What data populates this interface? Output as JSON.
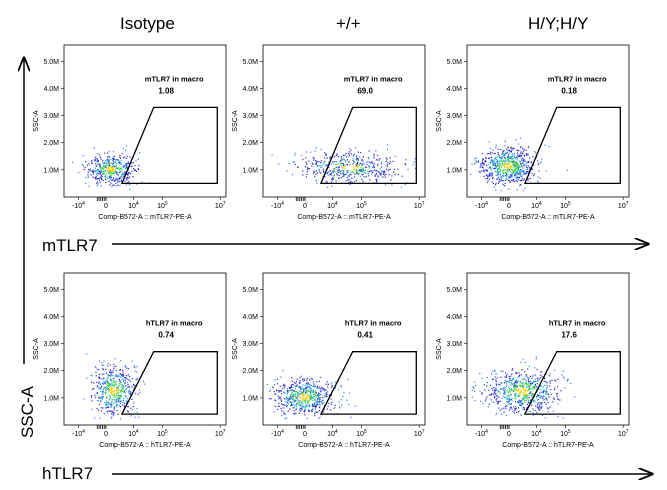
{
  "column_headers": [
    "Isotype",
    "+/+",
    "H/Y;H/Y"
  ],
  "row_labels": [
    "mTLR7",
    "hTLR7"
  ],
  "side_label": "SSC-A",
  "colors": {
    "dot_low": "#2b2bd6",
    "dot_mid": "#22aadd",
    "dot_high": "#44dd44",
    "dot_peak": "#ffcc00",
    "dot_outlier": "#4477ee",
    "gate": "#000000"
  },
  "chart_data": [
    {
      "type": "scatter",
      "row": 0,
      "col": 0,
      "gate_name": "mTLR7 in macro",
      "gate_value": "1.08",
      "xlabel": "Comp-B572-A :: mTLR7-PE-A",
      "ylabel": "SSC-A",
      "yticks": [
        "1.0M",
        "2.0M",
        "3.0M",
        "4.0M",
        "5.0M"
      ],
      "xticks": [
        "-10^4",
        "0",
        "10^4",
        "10^5",
        "10^7"
      ],
      "cloud": {
        "cx_decade": 3.2,
        "cy_M": 1.05,
        "sx": 0.45,
        "sy": 0.28,
        "n": 420,
        "dense": 0.6
      },
      "gate": [
        [
          3.6,
          0.5
        ],
        [
          4.7,
          3.3
        ],
        [
          6.9,
          3.3
        ],
        [
          6.9,
          0.5
        ]
      ]
    },
    {
      "type": "scatter",
      "row": 0,
      "col": 1,
      "gate_name": "mTLR7 in macro",
      "gate_value": "69.0",
      "xlabel": "Comp-B572-A :: mTLR7-PE-A",
      "ylabel": "SSC-A",
      "yticks": [
        "1.0M",
        "2.0M",
        "3.0M",
        "4.0M",
        "5.0M"
      ],
      "xticks": [
        "-10^4",
        "0",
        "10^4",
        "10^5",
        "10^7"
      ],
      "cloud": {
        "cx_decade": 4.6,
        "cy_M": 1.1,
        "sx": 0.9,
        "sy": 0.3,
        "n": 460,
        "dense": 0.35
      },
      "gate": [
        [
          3.6,
          0.5
        ],
        [
          4.7,
          3.3
        ],
        [
          6.9,
          3.3
        ],
        [
          6.9,
          0.5
        ]
      ]
    },
    {
      "type": "scatter",
      "row": 0,
      "col": 2,
      "gate_name": "mTLR7 in macro",
      "gate_value": "0.18",
      "xlabel": "Comp-B572-A :: mTLR7-PE-A",
      "ylabel": "SSC-A",
      "yticks": [
        "1.0M",
        "2.0M",
        "3.0M",
        "4.0M",
        "5.0M"
      ],
      "xticks": [
        "-10^4",
        "0",
        "10^4",
        "10^5",
        "10^7"
      ],
      "cloud": {
        "cx_decade": 3.0,
        "cy_M": 1.15,
        "sx": 0.5,
        "sy": 0.35,
        "n": 650,
        "dense": 0.7
      },
      "gate": [
        [
          3.6,
          0.5
        ],
        [
          4.7,
          3.3
        ],
        [
          6.9,
          3.3
        ],
        [
          6.9,
          0.5
        ]
      ]
    },
    {
      "type": "scatter",
      "row": 1,
      "col": 0,
      "gate_name": "hTLR7 in macro",
      "gate_value": "0.74",
      "xlabel": "Comp-B572-A :: hTLR7-PE-A",
      "ylabel": "SSC-A",
      "yticks": [
        "1.0M",
        "2.0M",
        "3.0M",
        "4.0M",
        "5.0M"
      ],
      "xticks": [
        "-10^4",
        "0",
        "10^4",
        "10^5",
        "10^7"
      ],
      "cloud": {
        "cx_decade": 3.3,
        "cy_M": 1.3,
        "sx": 0.4,
        "sy": 0.45,
        "n": 480,
        "dense": 0.7
      },
      "gate": [
        [
          3.6,
          0.4
        ],
        [
          4.7,
          2.7
        ],
        [
          6.9,
          2.7
        ],
        [
          6.9,
          0.4
        ]
      ]
    },
    {
      "type": "scatter",
      "row": 1,
      "col": 1,
      "gate_name": "hTLR7 in macro",
      "gate_value": "0.41",
      "xlabel": "Comp-B572-A :: hTLR7-PE-A",
      "ylabel": "SSC-A",
      "yticks": [
        "1.0M",
        "2.0M",
        "3.0M",
        "4.0M",
        "5.0M"
      ],
      "xticks": [
        "-10^4",
        "0",
        "10^4",
        "10^5",
        "10^7"
      ],
      "cloud": {
        "cx_decade": 3.0,
        "cy_M": 1.05,
        "sx": 0.55,
        "sy": 0.35,
        "n": 560,
        "dense": 0.6
      },
      "gate": [
        [
          3.6,
          0.4
        ],
        [
          4.7,
          2.7
        ],
        [
          6.9,
          2.7
        ],
        [
          6.9,
          0.4
        ]
      ]
    },
    {
      "type": "scatter",
      "row": 1,
      "col": 2,
      "gate_name": "hTLR7 in macro",
      "gate_value": "17.6",
      "xlabel": "Comp-B572-A :: hTLR7-PE-A",
      "ylabel": "SSC-A",
      "yticks": [
        "1.0M",
        "2.0M",
        "3.0M",
        "4.0M",
        "5.0M"
      ],
      "xticks": [
        "-10^4",
        "0",
        "10^4",
        "10^5",
        "10^7"
      ],
      "cloud": {
        "cx_decade": 3.5,
        "cy_M": 1.25,
        "sx": 0.65,
        "sy": 0.4,
        "n": 620,
        "dense": 0.65
      },
      "gate": [
        [
          3.6,
          0.4
        ],
        [
          4.7,
          2.7
        ],
        [
          6.9,
          2.7
        ],
        [
          6.9,
          0.4
        ]
      ]
    }
  ]
}
